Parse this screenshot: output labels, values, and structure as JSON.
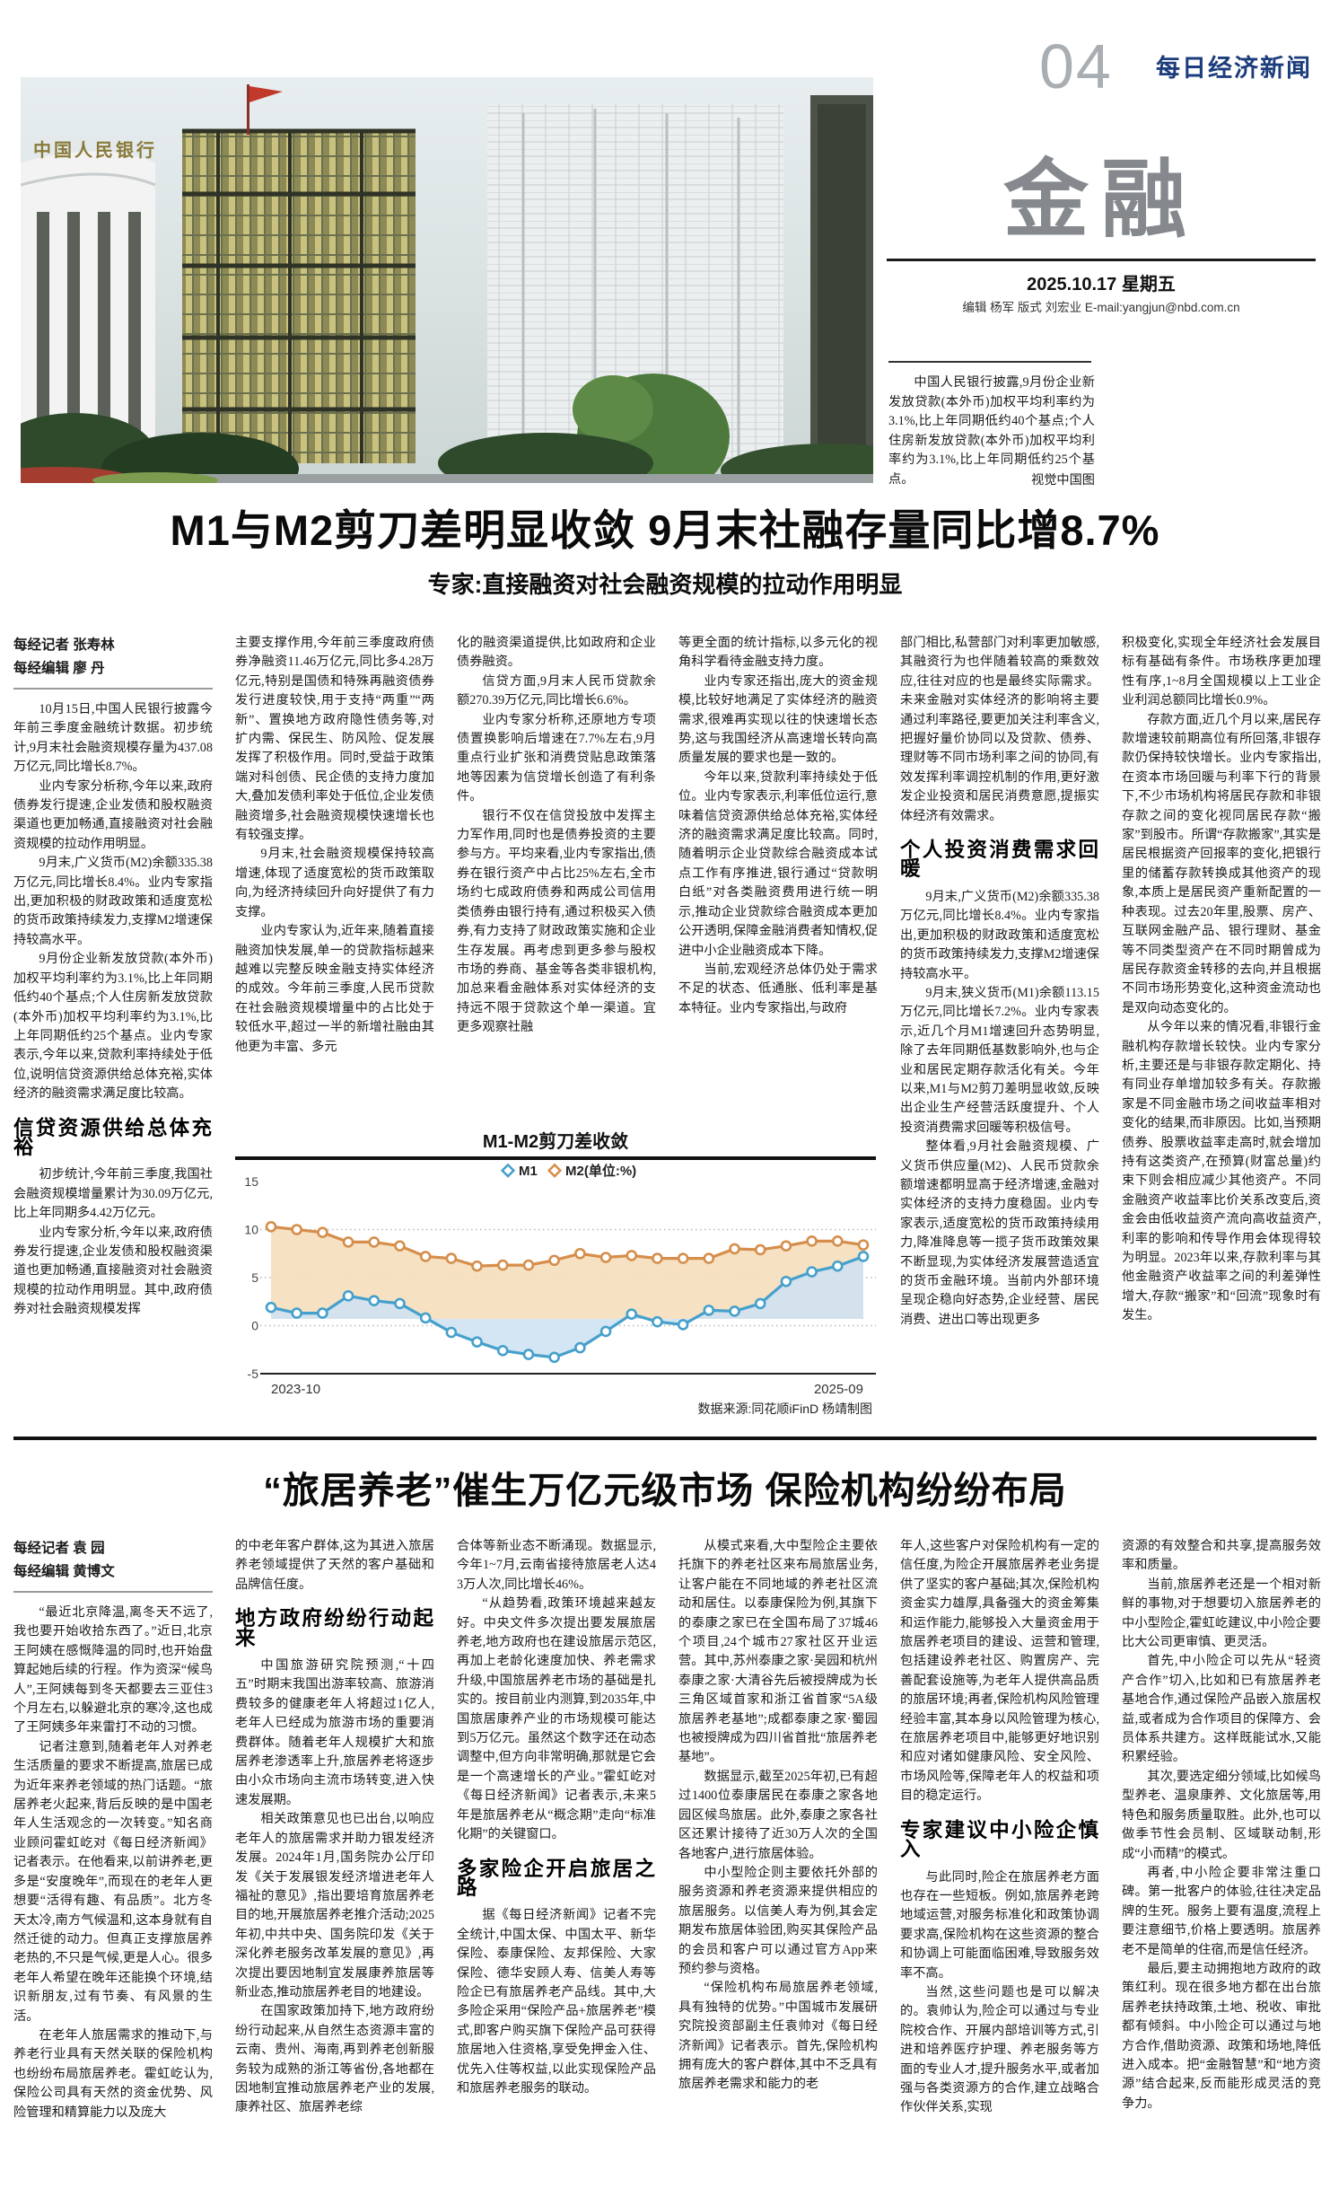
{
  "page": {
    "number": "04",
    "masthead": "每日经济新闻",
    "section": "金融",
    "date": "2025.10.17 星期五",
    "staff": "编辑 杨军 版式 刘宏业 E-mail:yangjun@nbd.com.cn"
  },
  "photo": {
    "sign_text": "中国人民银行",
    "caption": "中国人民银行披露,9月份企业新发放贷款(本外币)加权平均利率约为3.1%,比上年同期低约40个基点;个人住房新发放贷款(本外币)加权平均利率约为3.1%,比上年同期低约25个基点。",
    "credit": "视觉中国图"
  },
  "article1": {
    "headline": "M1与M2剪刀差明显收敛 9月末社融存量同比增8.7%",
    "subhead": "专家:直接融资对社会融资规模的拉动作用明显",
    "reporter": "每经记者 张寿林",
    "editor": "每经编辑 廖 丹",
    "col1": {
      "paras": [
        "10月15日,中国人民银行披露今年前三季度金融统计数据。初步统计,9月末社会融资规模存量为437.08万亿元,同比增长8.7%。",
        "业内专家分析称,今年以来,政府债券发行提速,企业发债和股权融资渠道也更加畅通,直接融资对社会融资规模的拉动作用明显。",
        "9月末,广义货币(M2)余额335.38万亿元,同比增长8.4%。业内专家指出,更加积极的财政政策和适度宽松的货币政策持续发力,支撑M2增速保持较高水平。",
        "9月份企业新发放贷款(本外币)加权平均利率约为3.1%,比上年同期低约40个基点;个人住房新发放贷款(本外币)加权平均利率约为3.1%,比上年同期低约25个基点。业内专家表示,今年以来,贷款利率持续处于低位,说明信贷资源供给总体充裕,实体经济的融资需求满足度比较高。"
      ],
      "section": "信贷资源供给总体充裕",
      "paras2": [
        "初步统计,今年前三季度,我国社会融资规模增量累计为30.09万亿元,比上年同期多4.42万亿元。",
        "业内专家分析,今年以来,政府债券发行提速,企业发债和股权融资渠道也更加畅通,直接融资对社会融资规模的拉动作用明显。其中,政府债券对社会融资规模发挥"
      ]
    },
    "col2": {
      "cont": "主要支撑作用,今年前三季度政府债券净融资11.46万亿元,同比多4.28万亿元,特别是国债和特殊再融资债券发行进度较快,用于支持“两重”“两新”、置换地方政府隐性债务等,对扩内需、保民生、防风险、促发展发挥了积极作用。同时,受益于政策端对科创债、民企债的支持力度加大,叠加发债利率处于低位,企业发债融资增多,社会融资规模快速增长也有较强支撑。",
      "paras": [
        "9月末,社会融资规模保持较高增速,体现了适度宽松的货币政策取向,为经济持续回升向好提供了有力支撑。",
        "业内专家认为,近年来,随着直接融资加快发展,单一的贷款指标越来越难以完整反映金融支持实体经济的成效。今年前三季度,人民币贷款在社会融资规模增量中的占比处于较低水平,超过一半的新增社融由其他更为丰富、多元"
      ]
    },
    "col3": {
      "cont": "化的融资渠道提供,比如政府和企业债券融资。",
      "paras": [
        "信贷方面,9月末人民币贷款余额270.39万亿元,同比增长6.6%。",
        "业内专家分析称,还原地方专项债置换影响后增速在7.7%左右,9月重点行业扩张和消费贷贴息政策落地等因素为信贷增长创造了有利条件。",
        "银行不仅在信贷投放中发挥主力军作用,同时也是债券投资的主要参与方。平均来看,业内专家指出,债券在银行资产中占比25%左右,全市场约七成政府债券和两成公司信用类债券由银行持有,通过积极买入债券,有力支持了财政政策实施和企业生存发展。再考虑到更多参与股权市场的券商、基金等各类非银机构,加总来看金融体系对实体经济的支持远不限于贷款这个单一渠道。宜更多观察社融"
      ]
    },
    "col4": {
      "cont": "等更全面的统计指标,以多元化的视角科学看待金融支持力度。",
      "paras": [
        "业内专家还指出,庞大的资金规模,比较好地满足了实体经济的融资需求,很难再实现以往的快速增长态势,这与我国经济从高速增长转向高质量发展的要求也是一致的。",
        "今年以来,贷款利率持续处于低位。业内专家表示,利率低位运行,意味着信贷资源供给总体充裕,实体经济的融资需求满足度比较高。同时,随着明示企业贷款综合融资成本试点工作有序推进,银行通过“贷款明白纸”对各类融资费用进行统一明示,推动企业贷款综合融资成本更加公开透明,保障金融消费者知情权,促进中小企业融资成本下降。",
        "当前,宏观经济总体仍处于需求不足的状态、低通胀、低利率是基本特征。业内专家指出,与政府"
      ]
    },
    "col5": {
      "cont": "部门相比,私营部门对利率更加敏感,其融资行为也伴随着较高的乘数效应,往往对应的也是最终实际需求。未来金融对实体经济的影响将主要通过利率路径,要更加关注利率含义,把握好量价协同以及贷款、债券、理财等不同市场利率之间的协同,有效发挥利率调控机制的作用,更好激发企业投资和居民消费意愿,提振实体经济有效需求。",
      "section": "个人投资消费需求回暖",
      "paras": [
        "9月末,广义货币(M2)余额335.38万亿元,同比增长8.4%。业内专家指出,更加积极的财政政策和适度宽松的货币政策持续发力,支撑M2增速保持较高水平。",
        "9月末,狭义货币(M1)余额113.15万亿元,同比增长7.2%。业内专家表示,近几个月M1增速回升态势明显,除了去年同期低基数影响外,也与企业和居民定期存款活化有关。今年以来,M1与M2剪刀差明显收敛,反映出企业生产经营活跃度提升、个人投资消费需求回暖等积极信号。",
        "整体看,9月社会融资规模、广义货币供应量(M2)、人民币贷款余额增速都明显高于经济增速,金融对实体经济的支持力度稳固。业内专家表示,适度宽松的货币政策持续用力,降准降息等一揽子货币政策效果不断显现,为实体经济发展营造适宜的货币金融环境。当前内外部环境呈现企稳向好态势,企业经营、居民消费、进出口等出现更多"
      ]
    },
    "col6": {
      "cont": "积极变化,实现全年经济社会发展目标有基础有条件。市场秩序更加理性有序,1~8月全国规模以上工业企业利润总额同比增长0.9%。",
      "paras": [
        "存款方面,近几个月以来,居民存款增速较前期高位有所回落,非银存款仍保持较快增长。业内专家指出,在资本市场回暖与利率下行的背景下,不少市场机构将居民存款和非银存款之间的变化视同居民存款“搬家”到股市。所谓“存款搬家”,其实是居民根据资产回报率的变化,把银行里的储蓄存款转换成其他资产的现象,本质上是居民资产重新配置的一种表现。过去20年里,股票、房产、互联网金融产品、银行理财、基金等不同类型资产在不同时期曾成为居民存款资金转移的去向,并且根据不同市场形势变化,这种资金流动也是双向动态变化的。",
        "从今年以来的情况看,非银行金融机构存款增长较快。业内专家分析,主要还是与非银存款定期化、持有同业存单增加较多有关。存款搬家是不同金融市场之间收益率相对变化的结果,而非原因。比如,当预期债券、股票收益率走高时,就会增加持有这类资产,在预算(财富总量)约束下则会相应减少其他资产。不同金融资产收益率比价关系改变后,资金会由低收益资产流向高收益资产,利率的影响和传导作用会体现得较为明显。2023年以来,存款利率与其他金融资产收益率之间的利差弹性增大,存款“搬家”和“回流”现象时有发生。"
      ]
    }
  },
  "chart_data": {
    "type": "line",
    "title": "M1-M2剪刀差收敛",
    "unit_note": "(单位:%)",
    "x": [
      "2023-10",
      "2023-11",
      "2023-12",
      "2024-01",
      "2024-02",
      "2024-03",
      "2024-04",
      "2024-05",
      "2024-06",
      "2024-07",
      "2024-08",
      "2024-09",
      "2024-10",
      "2024-11",
      "2024-12",
      "2025-01",
      "2025-02",
      "2025-03",
      "2025-04",
      "2025-05",
      "2025-06",
      "2025-07",
      "2025-08",
      "2025-09"
    ],
    "series": [
      {
        "name": "M1",
        "color": "#45a0cb",
        "fill": "#cfe2f2",
        "values": [
          1.9,
          1.3,
          1.3,
          3.1,
          2.6,
          2.3,
          0.8,
          -0.7,
          -1.7,
          -2.6,
          -3.0,
          -3.3,
          -2.3,
          -0.6,
          1.2,
          0.4,
          0.1,
          1.6,
          1.5,
          2.3,
          4.6,
          5.6,
          6.2,
          7.2
        ]
      },
      {
        "name": "M2",
        "color": "#d58e4b",
        "fill": "#f6debd",
        "values": [
          10.3,
          10.0,
          9.7,
          8.7,
          8.7,
          8.3,
          7.2,
          7.0,
          6.2,
          6.3,
          6.3,
          6.8,
          7.5,
          7.1,
          7.3,
          7.0,
          7.0,
          7.0,
          8.0,
          7.9,
          8.3,
          8.8,
          8.8,
          8.4
        ]
      }
    ],
    "ylim": [
      -5,
      15
    ],
    "yticks": [
      15,
      10,
      5,
      0,
      -5
    ],
    "x_first_label": "2023-10",
    "x_last_label": "2025-09",
    "grid": "dotted horizontal at 10 / 5 / 0",
    "legend_position": "top center",
    "source": "数据来源:同花顺iFinD 杨靖制图"
  },
  "article2": {
    "headline": "“旅居养老”催生万亿元级市场 保险机构纷纷布局",
    "reporter": "每经记者 袁 园",
    "editor": "每经编辑 黄博文",
    "col1": {
      "paras": [
        "“最近北京降温,离冬天不远了,我也要开始收拾东西了。”近日,北京王阿姨在感慨降温的同时,也开始盘算起她后续的行程。作为资深“候鸟人”,王阿姨每到冬天都要去三亚住3个月左右,以躲避北京的寒冷,这也成了王阿姨多年来雷打不动的习惯。",
        "记者注意到,随着老年人对养老生活质量的要求不断提高,旅居已成为近年来养老领域的热门话题。“旅居养老火起来,背后反映的是中国老年人生活观念的一次转变。”知名商业顾问霍虹屹对《每日经济新闻》记者表示。在他看来,以前讲养老,更多是“安度晚年”,而现在的老年人更想要“活得有趣、有品质”。北方冬天太冷,南方气候温和,这本身就有自然迁徙的动力。但真正支撑旅居养老热的,不只是气候,更是人心。很多老年人希望在晚年还能换个环境,结识新朋友,过有节奏、有风景的生活。",
        "在老年人旅居需求的推动下,与养老行业具有天然关联的保险机构也纷纷布局旅居养老。霍虹屹认为,保险公司具有天然的资金优势、风险管理和精算能力以及庞大"
      ]
    },
    "col2": {
      "cont": "的中老年客户群体,这为其进入旅居养老领域提供了天然的客户基础和品牌信任度。",
      "section": "地方政府纷纷行动起来",
      "paras": [
        "中国旅游研究院预测,“十四五”时期末我国出游率较高、旅游消费较多的健康老年人将超过1亿人,老年人已经成为旅游市场的重要消费群体。随着老年人规模扩大和旅居养老渗透率上升,旅居养老将逐步由小众市场向主流市场转变,进入快速发展期。",
        "相关政策意见也已出台,以响应老年人的旅居需求并助力银发经济发展。2024年1月,国务院办公厅印发《关于发展银发经济增进老年人福祉的意见》,指出要培育旅居养老目的地,开展旅居养老推介活动;2025年初,中共中央、国务院印发《关于深化养老服务改革发展的意见》,再次提出要因地制宜发展康养旅居等新业态,推动旅居养老目的地建设。",
        "在国家政策加持下,地方政府纷纷行动起来,从自然生态资源丰富的云南、贵州、海南,再到养老创新服务较为成熟的浙江等省份,各地都在因地制宜推动旅居养老产业的发展,康养社区、旅居养老综"
      ]
    },
    "col3": {
      "cont": "合体等新业态不断涌现。数据显示,今年1~7月,云南省接待旅居老人达43万人次,同比增长46%。",
      "paras": [
        "“从趋势看,政策环境越来越友好。中央文件多次提出要发展旅居养老,地方政府也在建设旅居示范区,再加上老龄化速度加快、养老需求升级,中国旅居养老市场的基础是扎实的。按目前业内测算,到2035年,中国旅居康养产业的市场规模可能达到5万亿元。虽然这个数字还在动态调整中,但方向非常明确,那就是它会是一个高速增长的产业。”霍虹屹对《每日经济新闻》记者表示,未来5年是旅居养老从“概念期”走向“标准化期”的关键窗口。"
      ],
      "section": "多家险企开启旅居之路",
      "paras2": [
        "据《每日经济新闻》记者不完全统计,中国太保、中国太平、新华保险、泰康保险、友邦保险、大家保险、德华安顾人寿、信美人寿等险企已有旅居养老产品线。其中,大多险企采用“保险产品+旅居养老”模式,即客户购买旗下保险产品可获得旅居地入住资格,享受免押金入住、优先入住等权益,以此实现保险产品和旅居养老服务的联动。"
      ]
    },
    "col4": {
      "paras": [
        "从模式来看,大中型险企主要依托旗下的养老社区来布局旅居业务,让客户能在不同地域的养老社区流动和居住。以泰康保险为例,其旗下的泰康之家已在全国布局了37城46个项目,24个城市27家社区开业运营。其中,苏州泰康之家·吴园和杭州泰康之家·大清谷先后被授牌成为长三角区域首家和浙江省首家“5A级旅居养老基地”;成都泰康之家·蜀园也被授牌成为四川省首批“旅居养老基地”。",
        "数据显示,截至2025年初,已有超过1400位泰康居民在泰康之家各地园区候鸟旅居。此外,泰康之家各社区还累计接待了近30万人次的全国各地客户,进行旅居体验。",
        "中小型险企则主要依托外部的服务资源和养老资源来提供相应的旅居服务。以信美人寿为例,其会定期发布旅居体验团,购买其保险产品的会员和客户可以通过官方App来预约参与资格。",
        "“保险机构布局旅居养老领域,具有独特的优势。”中国城市发展研究院投资部副主任袁帅对《每日经济新闻》记者表示。首先,保险机构拥有庞大的客户群体,其中不乏具有旅居养老需求和能力的老"
      ]
    },
    "col5": {
      "cont": "年人,这些客户对保险机构有一定的信任度,为险企开展旅居养老业务提供了坚实的客户基础;其次,保险机构资金实力雄厚,具备强大的资金筹集和运作能力,能够投入大量资金用于旅居养老项目的建设、运营和管理,包括建设养老社区、购置房产、完善配套设施等,为老年人提供高品质的旅居环境;再者,保险机构风险管理经验丰富,其本身以风险管理为核心,在旅居养老项目中,能够更好地识别和应对诸如健康风险、安全风险、市场风险等,保障老年人的权益和项目的稳定运行。",
      "section": "专家建议中小险企慎入",
      "paras": [
        "与此同时,险企在旅居养老方面也存在一些短板。例如,旅居养老跨地域运营,对服务标准化和政策协调要求高,保险机构在这些资源的整合和协调上可能面临困难,导致服务效率不高。",
        "当然,这些问题也是可以解决的。袁帅认为,险企可以通过与专业院校合作、开展内部培训等方式,引进和培养医疗护理、养老服务等方面的专业人才,提升服务水平,或者加强与各类资源方的合作,建立战略合作伙伴关系,实现"
      ]
    },
    "col6": {
      "cont": "资源的有效整合和共享,提高服务效率和质量。",
      "paras": [
        "当前,旅居养老还是一个相对新鲜的事物,对于想要切入旅居养老的中小型险企,霍虹屹建议,中小险企要比大公司更审慎、更灵活。",
        "首先,中小险企可以先从“轻资产合作”切入,比如和已有旅居养老基地合作,通过保险产品嵌入旅居权益,或者成为合作项目的保障方、会员体系共建方。这样既能试水,又能积累经验。",
        "其次,要选定细分领域,比如候鸟型养老、温泉康养、文化旅居等,用特色和服务质量取胜。此外,也可以做季节性会员制、区域联动制,形成“小而精”的模式。",
        "再者,中小险企要非常注重口碑。第一批客户的体验,往往决定品牌的生死。服务上要有温度,流程上要注意细节,价格上要透明。旅居养老不是简单的住宿,而是信任经济。",
        "最后,要主动拥抱地方政府的政策红利。现在很多地方都在出台旅居养老扶持政策,土地、税收、审批都有倾斜。中小险企可以通过与地方合作,借助资源、政策和场地,降低进入成本。把“金融智慧”和“地方资源”结合起来,反而能形成灵活的竞争力。"
      ]
    }
  }
}
